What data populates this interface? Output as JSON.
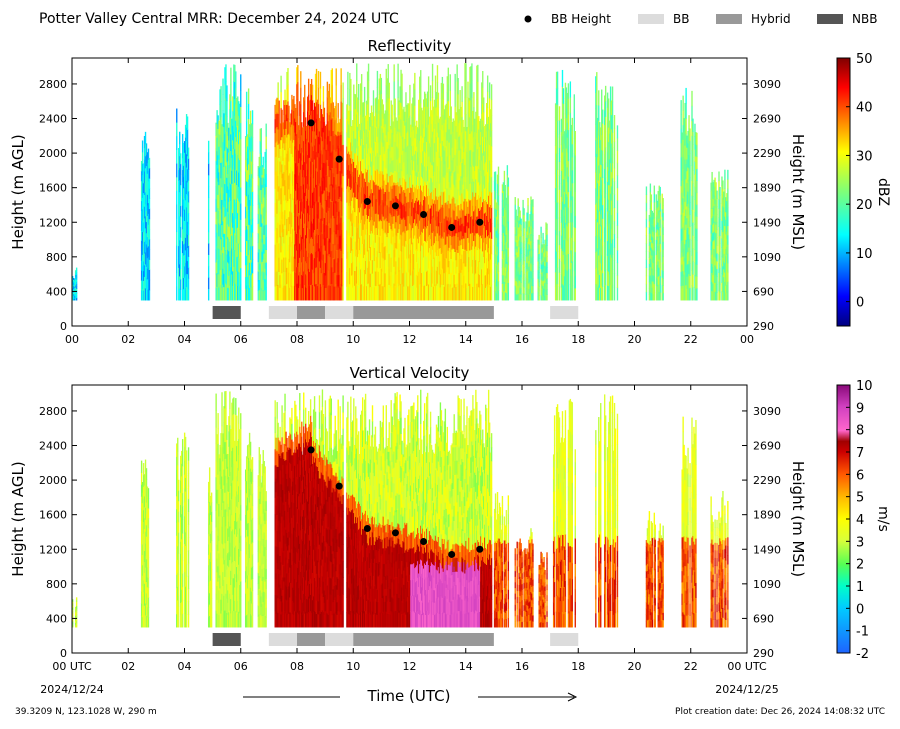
{
  "header": {
    "title": "Potter Valley Central MRR:  December 24, 2024 UTC",
    "legend": [
      {
        "label": "BB Height",
        "marker": "dot",
        "color": "#000000"
      },
      {
        "label": "BB",
        "marker": "box",
        "color": "#dcdcdc"
      },
      {
        "label": "Hybrid",
        "marker": "box",
        "color": "#999999"
      },
      {
        "label": "NBB",
        "marker": "box",
        "color": "#555555"
      }
    ]
  },
  "footer": {
    "xlabel": "Time (UTC)",
    "start_date": "2024/12/24",
    "end_date": "2024/12/25",
    "location": "39.3209 N, 123.1028 W, 290 m",
    "creation": "Plot creation date: Dec 26, 2024 14:08:32 UTC"
  },
  "chart_data": [
    {
      "type": "heatmap",
      "title": "Reflectivity",
      "ylabel": "Height (m AGL)",
      "ylabel_right": "Height (m MSL)",
      "colorbar_label": "dBZ",
      "colorbar_ticks": [
        "50",
        "40",
        "30",
        "20",
        "10",
        "0"
      ],
      "colorbar_range": [
        -5,
        50
      ],
      "x_ticks": [
        "00",
        "02",
        "04",
        "06",
        "08",
        "10",
        "12",
        "14",
        "16",
        "18",
        "20",
        "22",
        "00"
      ],
      "y_ticks": [
        "2800",
        "2400",
        "2000",
        "1600",
        "1200",
        "800",
        "400",
        "0"
      ],
      "y_ticks_right": [
        "3090",
        "2690",
        "2290",
        "1890",
        "1490",
        "1090",
        "690",
        "290"
      ],
      "xlim": [
        0,
        24
      ],
      "ylim": [
        0,
        3100
      ],
      "bb_height": [
        {
          "x": 8.5,
          "y": 2350
        },
        {
          "x": 9.5,
          "y": 1930
        },
        {
          "x": 10.5,
          "y": 1440
        },
        {
          "x": 11.5,
          "y": 1390
        },
        {
          "x": 12.5,
          "y": 1290
        },
        {
          "x": 13.5,
          "y": 1140
        },
        {
          "x": 14.5,
          "y": 1200
        }
      ],
      "bb_class": [
        {
          "start": 5,
          "end": 6,
          "class": "NBB"
        },
        {
          "start": 7,
          "end": 8,
          "class": "BB"
        },
        {
          "start": 8,
          "end": 9,
          "class": "Hybrid"
        },
        {
          "start": 9,
          "end": 10,
          "class": "BB"
        },
        {
          "start": 10,
          "end": 15,
          "class": "Hybrid"
        },
        {
          "start": 17,
          "end": 18,
          "class": "BB"
        }
      ]
    },
    {
      "type": "heatmap",
      "title": "Vertical Velocity",
      "ylabel": "Height (m AGL)",
      "ylabel_right": "Height (m MSL)",
      "colorbar_label": "m/s",
      "colorbar_ticks": [
        "10",
        "9",
        "8",
        "7",
        "6",
        "5",
        "4",
        "3",
        "2",
        "1",
        "0",
        "-1",
        "-2"
      ],
      "colorbar_range": [
        -2,
        10
      ],
      "x_ticks": [
        "00 UTC",
        "02",
        "04",
        "06",
        "08",
        "10",
        "12",
        "14",
        "16",
        "18",
        "20",
        "22",
        "00 UTC"
      ],
      "y_ticks": [
        "2800",
        "2400",
        "2000",
        "1600",
        "1200",
        "800",
        "400",
        "0"
      ],
      "y_ticks_right": [
        "3090",
        "2690",
        "2290",
        "1890",
        "1490",
        "1090",
        "690",
        "290"
      ],
      "xlim": [
        0,
        24
      ],
      "ylim": [
        0,
        3100
      ],
      "bb_height": [
        {
          "x": 8.5,
          "y": 2350
        },
        {
          "x": 9.5,
          "y": 1930
        },
        {
          "x": 10.5,
          "y": 1440
        },
        {
          "x": 11.5,
          "y": 1390
        },
        {
          "x": 12.5,
          "y": 1290
        },
        {
          "x": 13.5,
          "y": 1140
        },
        {
          "x": 14.5,
          "y": 1200
        }
      ],
      "bb_class": [
        {
          "start": 5,
          "end": 6,
          "class": "NBB"
        },
        {
          "start": 7,
          "end": 8,
          "class": "BB"
        },
        {
          "start": 8,
          "end": 9,
          "class": "Hybrid"
        },
        {
          "start": 9,
          "end": 10,
          "class": "BB"
        },
        {
          "start": 10,
          "end": 15,
          "class": "Hybrid"
        },
        {
          "start": 17,
          "end": 18,
          "class": "BB"
        }
      ]
    }
  ]
}
